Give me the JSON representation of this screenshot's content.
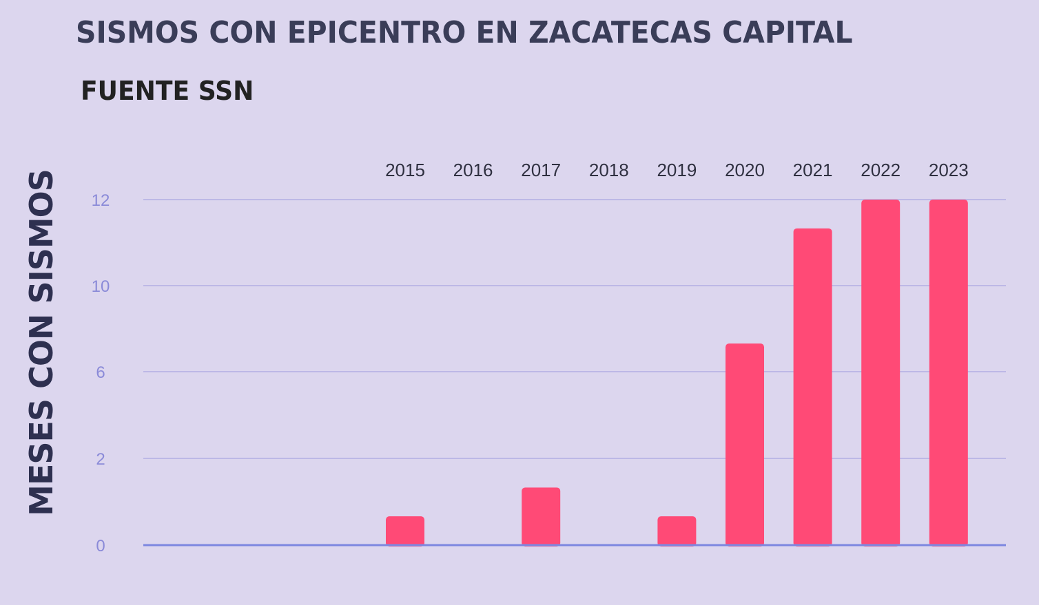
{
  "chart_data": {
    "type": "bar",
    "title": "SISMOS CON EPICENTRO EN ZACATECAS CAPITAL",
    "subtitle": "FUENTE SSN",
    "ylabel": "MESES CON SISMOS",
    "xlabel": "",
    "categories": [
      "2015",
      "2016",
      "2017",
      "2018",
      "2019",
      "2020",
      "2021",
      "2022",
      "2023"
    ],
    "values": [
      1,
      0,
      2,
      0,
      1,
      7,
      11,
      12,
      12
    ],
    "y_ticks": [
      "0",
      "2",
      "6",
      "10",
      "12"
    ],
    "ylim": [
      0,
      12
    ],
    "grid": true,
    "bar_color": "#ff4a76",
    "grid_color": "#bdb8e6",
    "axis_color": "#7d87e0"
  }
}
